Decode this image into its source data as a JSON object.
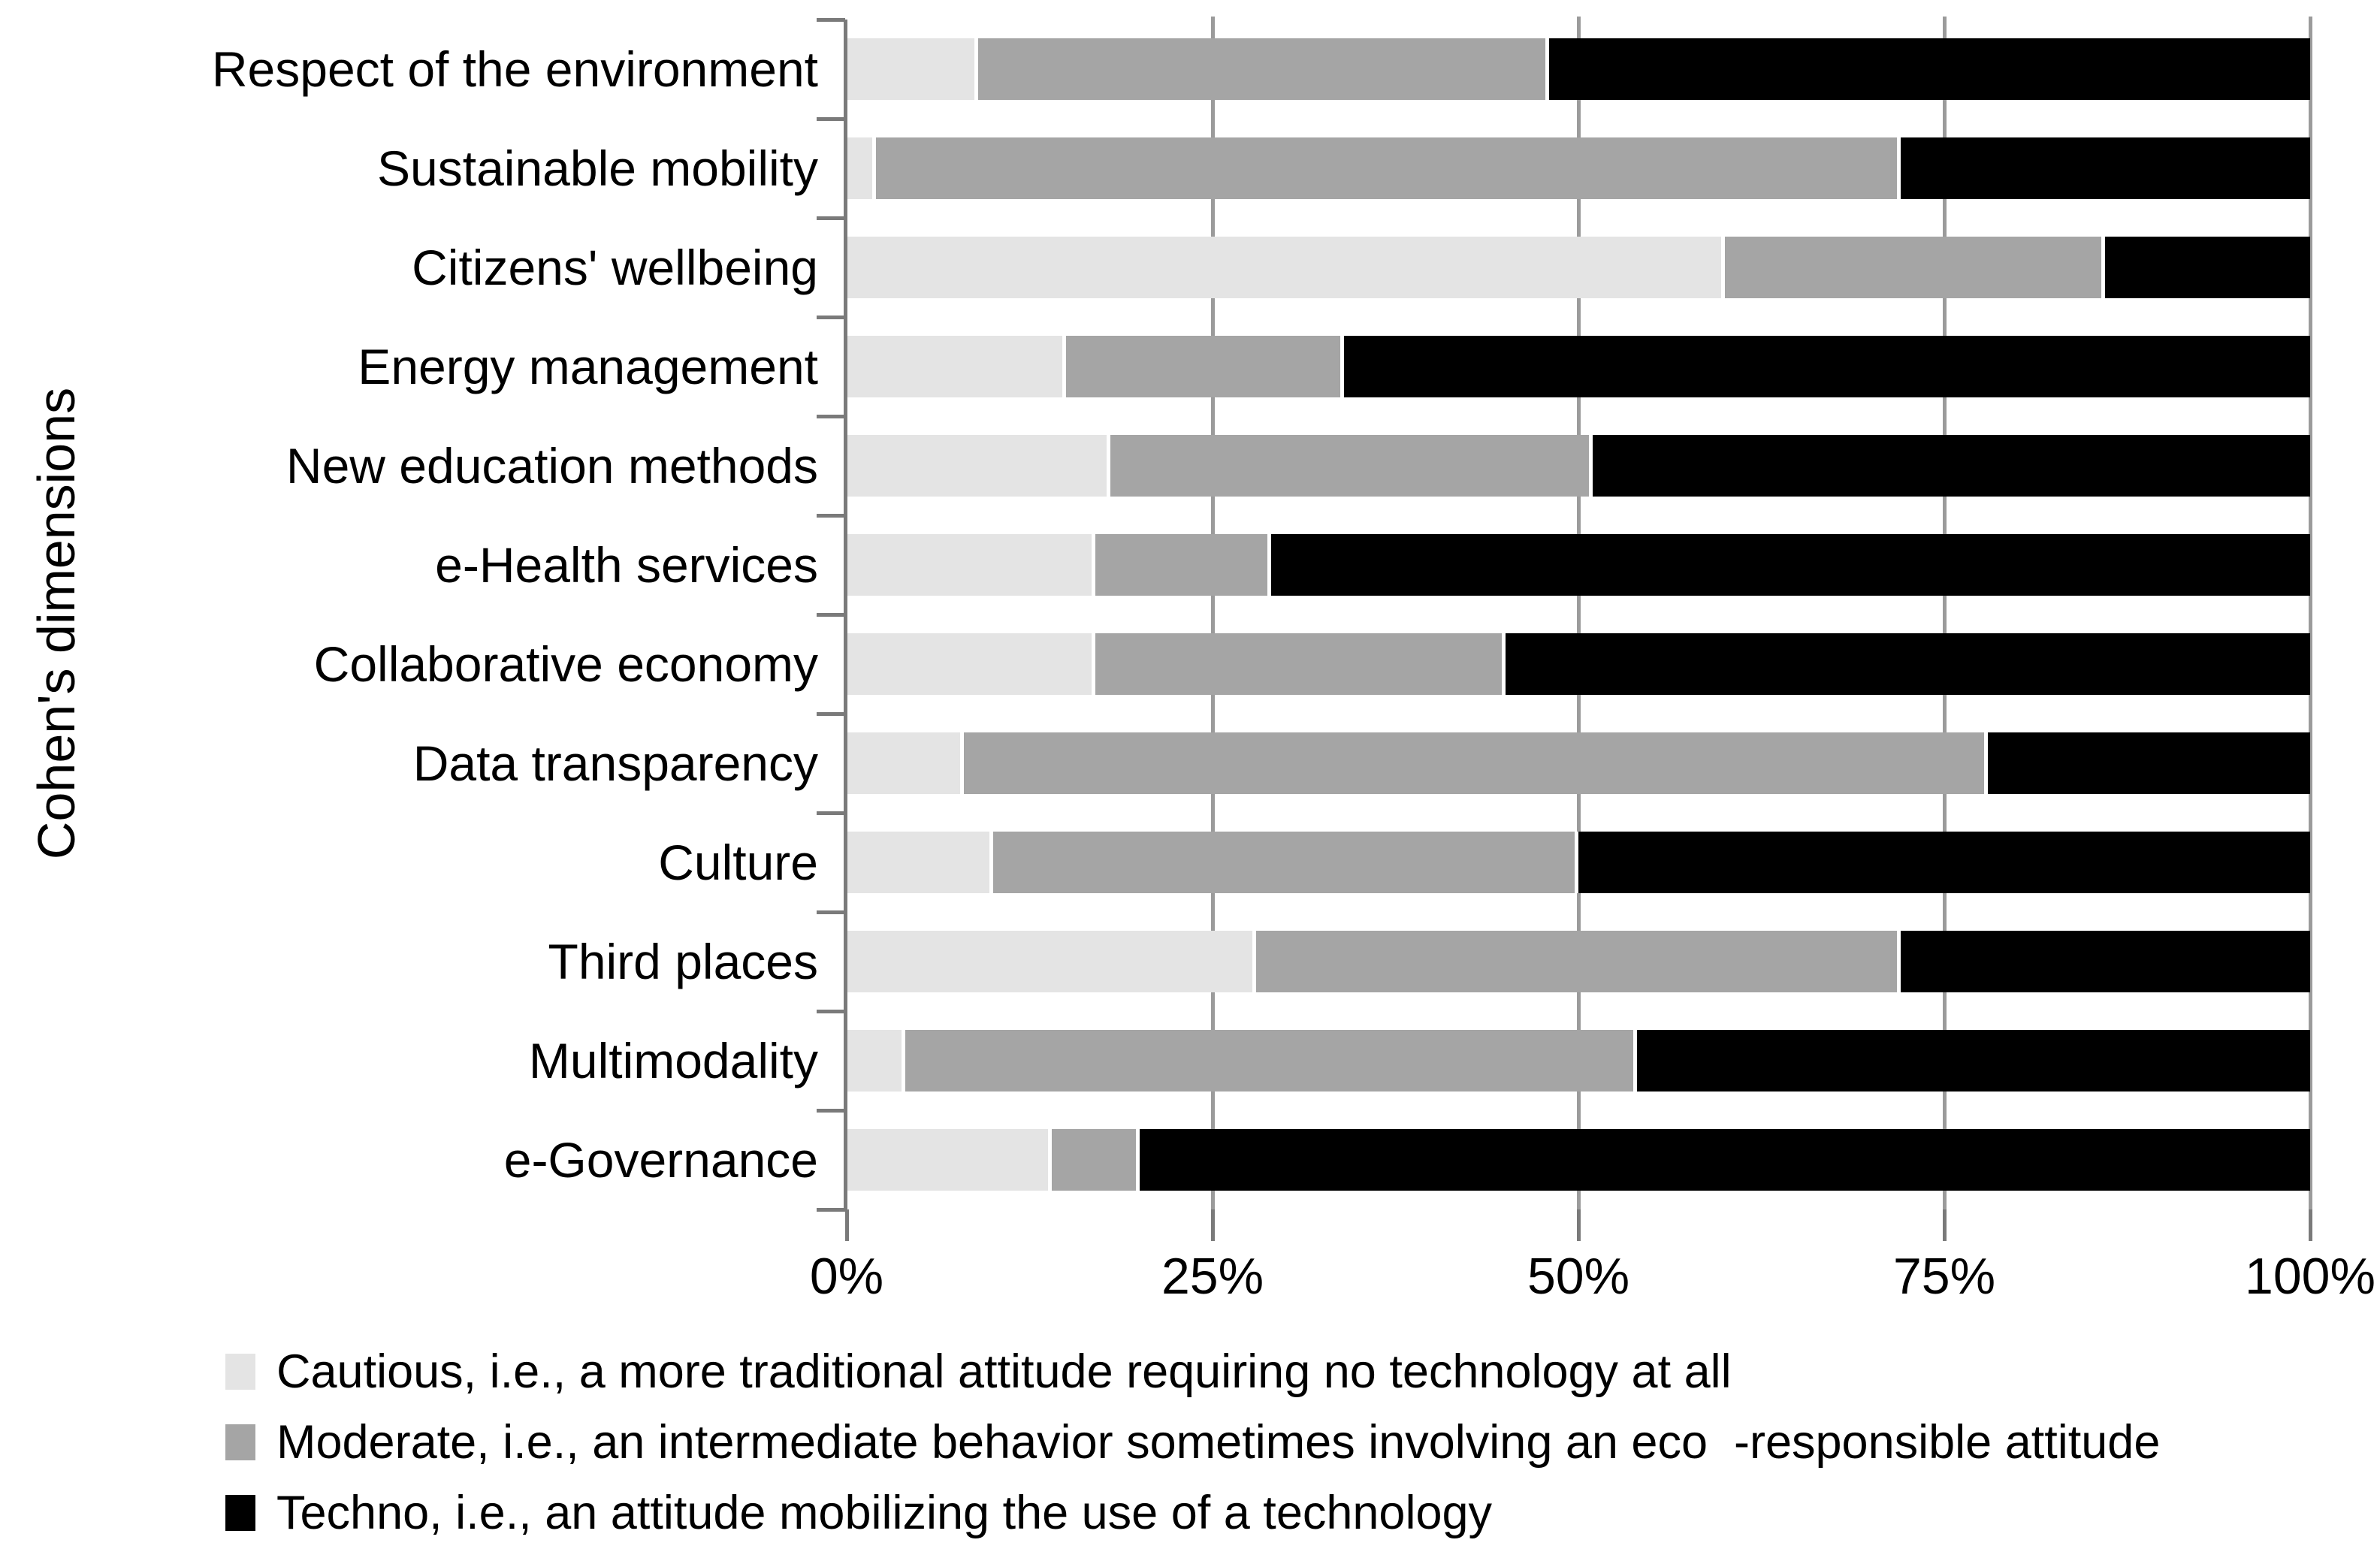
{
  "chart_data": {
    "type": "bar",
    "orientation": "horizontal",
    "stacked": true,
    "grid": true,
    "legend_position": "bottom",
    "y_axis_title": "Cohen's dimensions",
    "xlim": [
      0,
      100
    ],
    "x_tick_values": [
      0,
      25,
      50,
      75,
      100
    ],
    "x_tick_labels": [
      "0%",
      "25%",
      "50%",
      "75%",
      "100%"
    ],
    "categories": [
      "Respect of the environment",
      "Sustainable mobility",
      "Citizens' wellbeing",
      "Energy management",
      "New education methods",
      "e-Health services",
      "Collaborative economy",
      "Data transparency",
      "Culture",
      "Third places",
      "Multimodality",
      "e-Governance"
    ],
    "series": [
      {
        "name": "Cautious",
        "legend_label": "Cautious, i.e., a more traditional attitude requiring no technology at all",
        "color": "#e4e4e4",
        "values": [
          9,
          2,
          60,
          15,
          18,
          17,
          17,
          8,
          10,
          28,
          4,
          14
        ]
      },
      {
        "name": "Moderate",
        "legend_label": "Moderate, i.e., an intermediate behavior sometimes involving an eco  -responsible attitude",
        "color": "#a5a5a5",
        "values": [
          39,
          70,
          26,
          19,
          33,
          12,
          28,
          70,
          40,
          44,
          50,
          6
        ]
      },
      {
        "name": "Techno",
        "legend_label": "Techno, i.e., an attitude mobilizing the use of a technology",
        "color": "#000000",
        "values": [
          52,
          28,
          14,
          66,
          49,
          71,
          55,
          22,
          50,
          28,
          46,
          80
        ]
      }
    ]
  },
  "colors": {
    "gridline": "#9b9b9b",
    "axis": "#7a7a7a",
    "background": "#ffffff",
    "text": "#000000"
  }
}
